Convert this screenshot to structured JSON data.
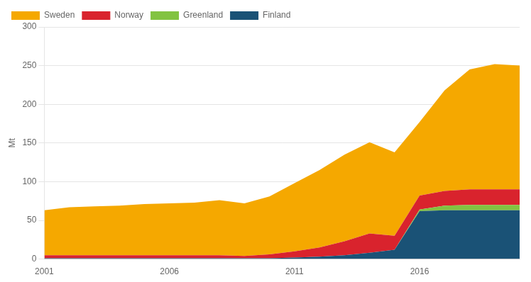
{
  "chart_data": {
    "type": "area",
    "stacked": true,
    "y_label": "Mt",
    "x": [
      2001,
      2002,
      2003,
      2004,
      2005,
      2006,
      2007,
      2008,
      2009,
      2010,
      2011,
      2012,
      2013,
      2014,
      2015,
      2016,
      2017,
      2018,
      2019,
      2020
    ],
    "xlim": [
      2001,
      2020
    ],
    "xticks": [
      2001,
      2006,
      2011,
      2016
    ],
    "ylim": [
      0,
      300
    ],
    "yticks": [
      0,
      50,
      100,
      150,
      200,
      250,
      300
    ],
    "grid": true,
    "legend": "upper left",
    "series": [
      {
        "name": "Finland",
        "color": "#1a5276",
        "values": [
          1,
          1,
          1,
          1,
          1,
          1,
          1,
          1,
          1,
          1,
          2,
          3,
          5,
          8,
          12,
          62,
          63,
          63,
          63,
          63
        ]
      },
      {
        "name": "Greenland",
        "color": "#82c341",
        "values": [
          0,
          0,
          0,
          0,
          0,
          0,
          0,
          0,
          0,
          0,
          0,
          0,
          0,
          0,
          0,
          2,
          6,
          7,
          7,
          7
        ]
      },
      {
        "name": "Norway",
        "color": "#d9232d",
        "values": [
          4,
          4,
          4,
          4,
          4,
          4,
          4,
          4,
          3,
          5,
          8,
          12,
          18,
          25,
          18,
          18,
          19,
          20,
          20,
          20
        ]
      },
      {
        "name": "Sweden",
        "color": "#f5a800",
        "values": [
          58,
          62,
          63,
          64,
          66,
          67,
          68,
          71,
          68,
          75,
          88,
          100,
          112,
          118,
          108,
          95,
          130,
          155,
          162,
          160
        ]
      }
    ]
  }
}
